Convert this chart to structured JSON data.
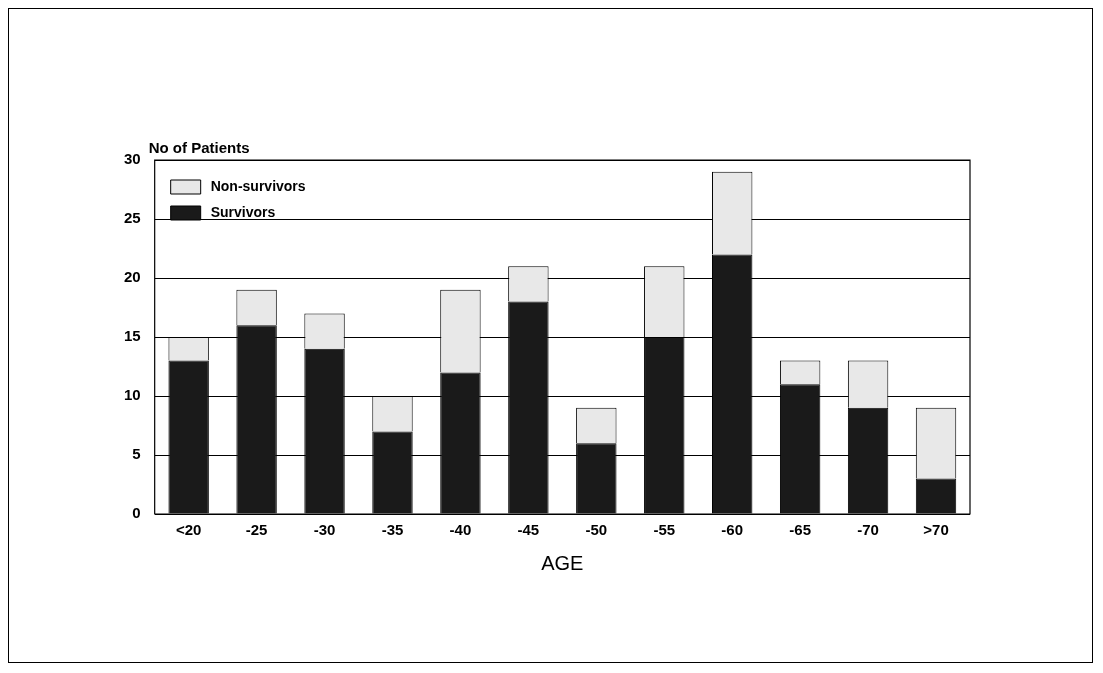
{
  "chart_data": {
    "type": "bar",
    "stacked": true,
    "ylabel": "No of Patients",
    "xlabel": "AGE",
    "categories": [
      "<20",
      "-25",
      "-30",
      "-35",
      "-40",
      "-45",
      "-50",
      "-55",
      "-60",
      "-65",
      "-70",
      ">70"
    ],
    "series": [
      {
        "name": "Survivors",
        "color": "#1a1a1a",
        "values": [
          13,
          16,
          14,
          7,
          12,
          18,
          6,
          15,
          22,
          11,
          9,
          3
        ]
      },
      {
        "name": "Non-survivors",
        "color": "#e8e8e8",
        "values": [
          2,
          3,
          3,
          3,
          7,
          3,
          3,
          6,
          7,
          2,
          4,
          6
        ]
      }
    ],
    "ylim": [
      0,
      30
    ],
    "yticks": [
      0,
      5,
      10,
      15,
      20,
      25,
      30
    ],
    "grid": "y",
    "legend": "top left"
  }
}
